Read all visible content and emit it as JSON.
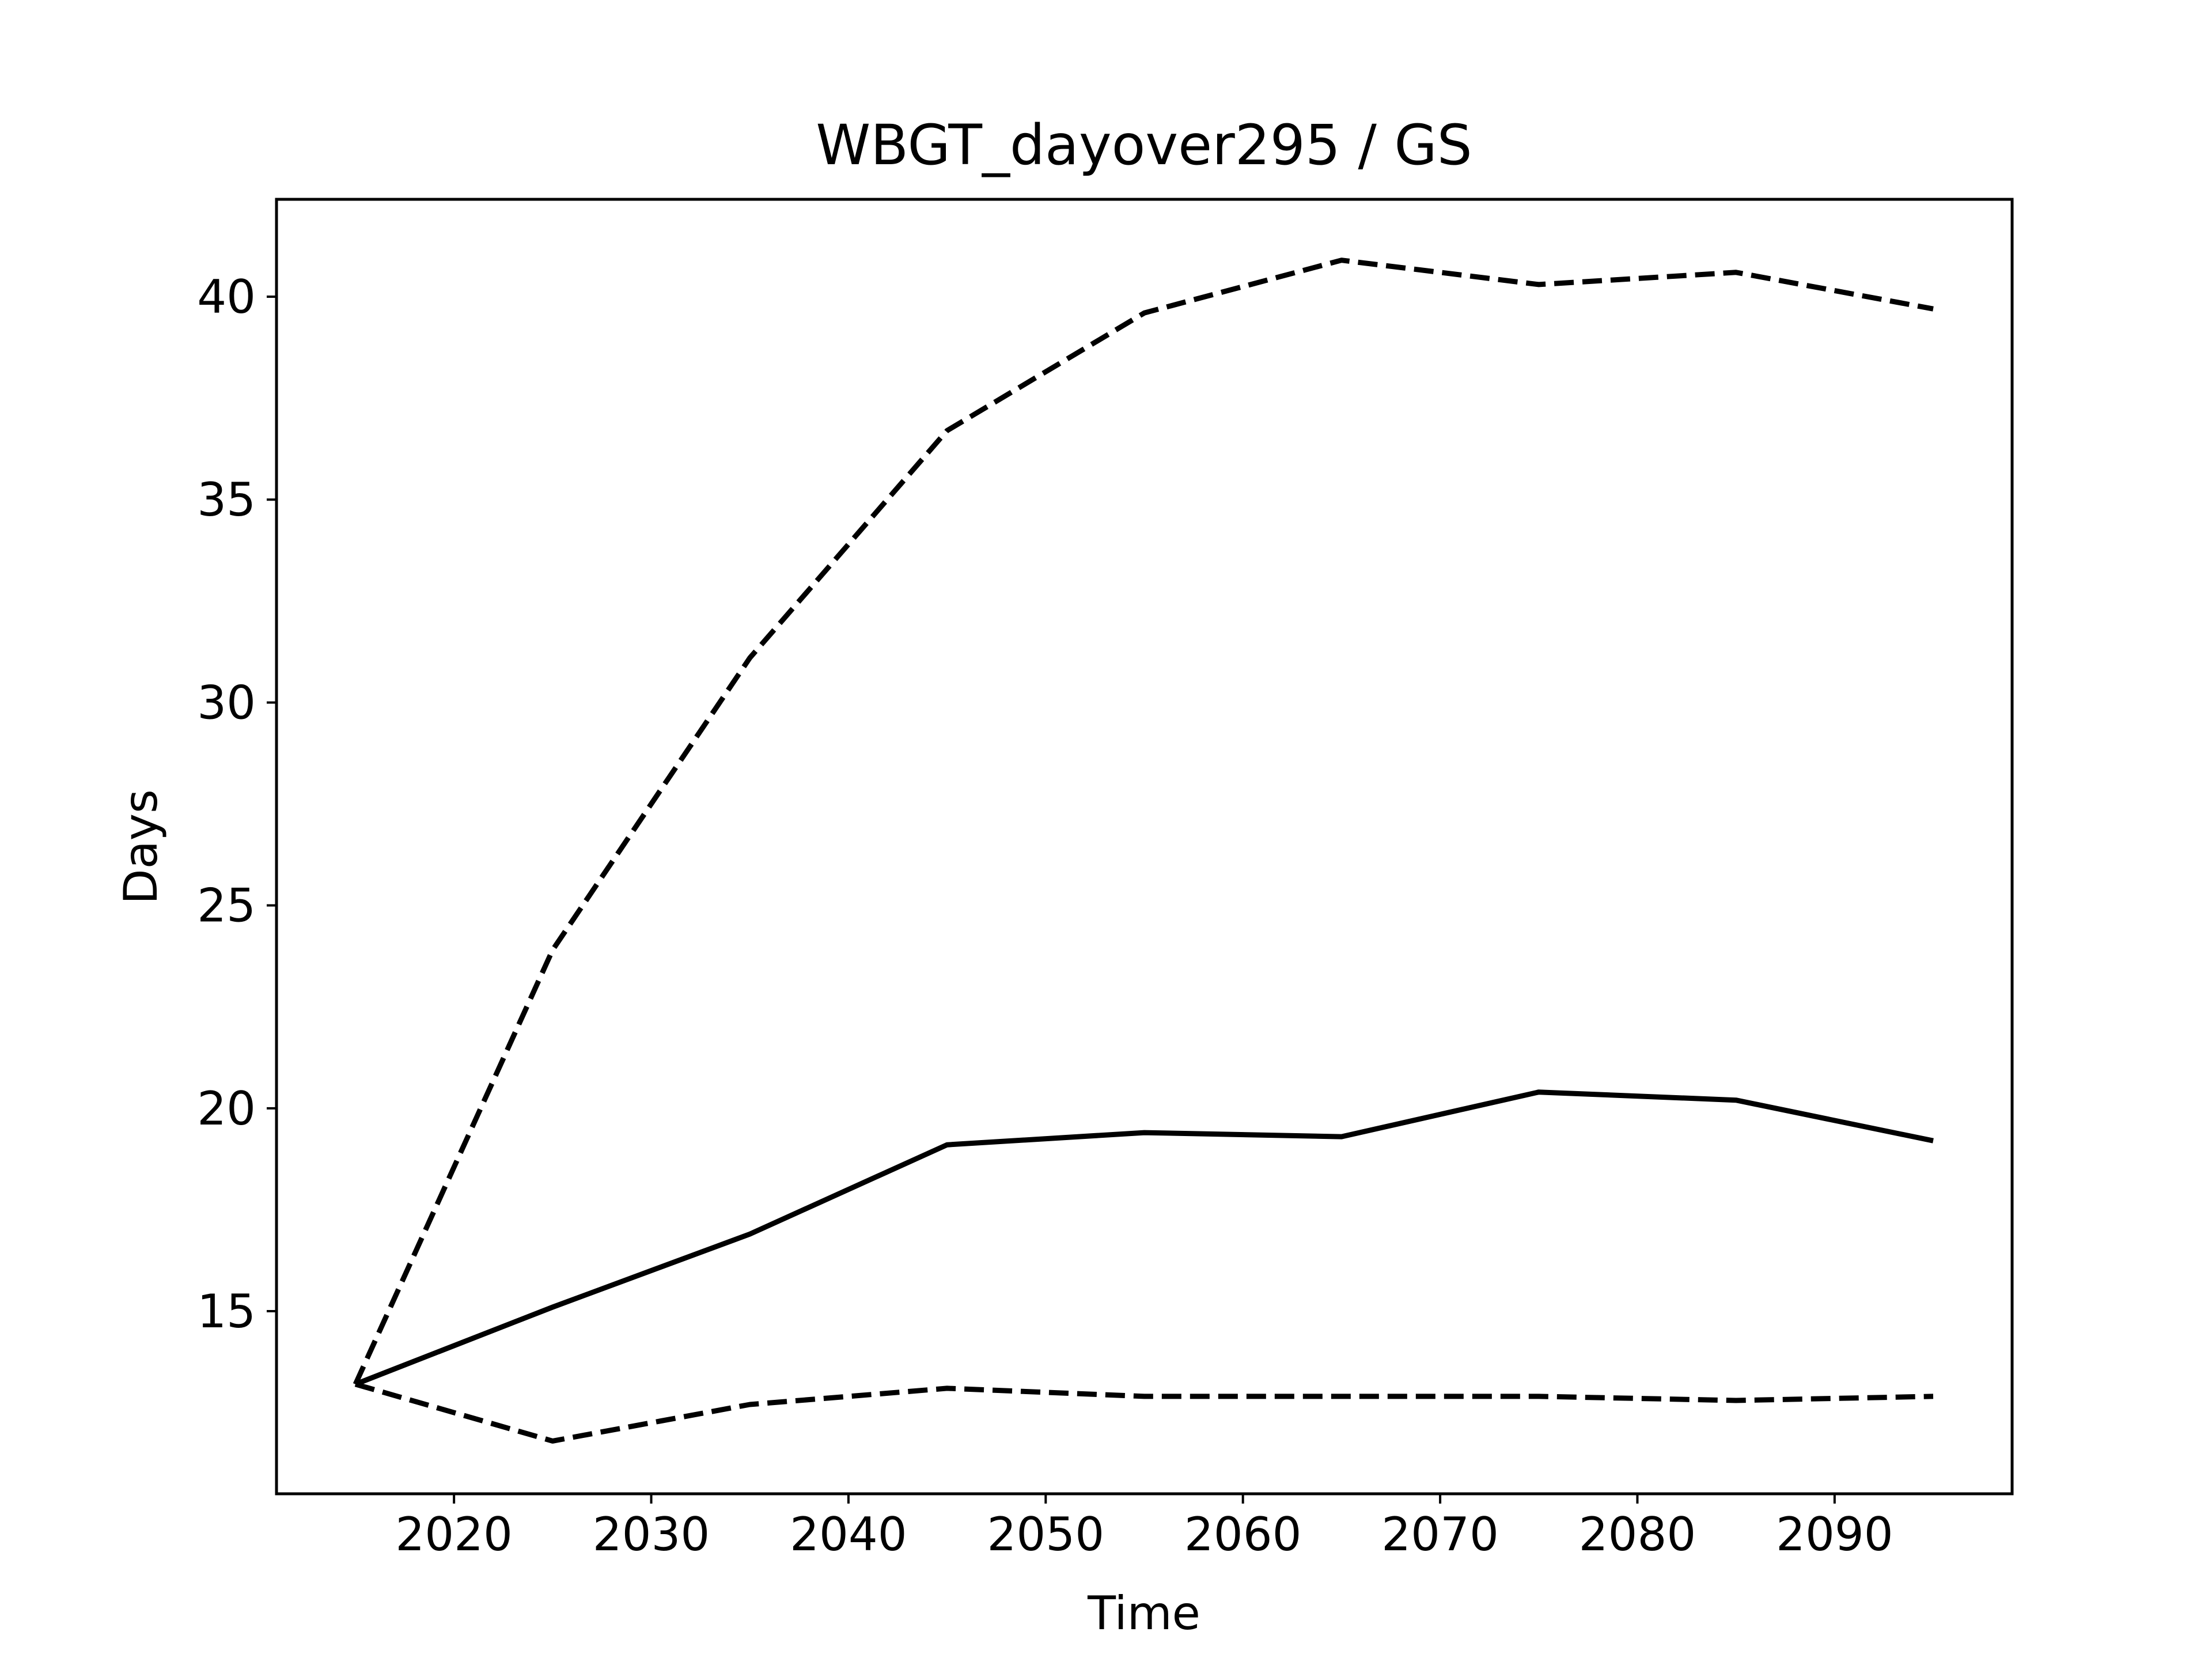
{
  "chart_data": {
    "type": "line",
    "title": "WBGT_dayover295 / GS",
    "xlabel": "Time",
    "ylabel": "Days",
    "x": [
      2015,
      2025,
      2035,
      2045,
      2055,
      2065,
      2075,
      2085,
      2095
    ],
    "xlim": [
      2011,
      2099
    ],
    "ylim": [
      10.5,
      42.4
    ],
    "xticks": [
      2020,
      2030,
      2040,
      2050,
      2060,
      2070,
      2080,
      2090
    ],
    "yticks": [
      15,
      20,
      25,
      30,
      35,
      40
    ],
    "grid": false,
    "legend": "none",
    "series": [
      {
        "style": "solid",
        "color": "#000000",
        "values": [
          13.2,
          15.1,
          16.9,
          19.1,
          19.4,
          19.3,
          20.4,
          20.2,
          19.2
        ]
      },
      {
        "style": "dashed",
        "color": "#000000",
        "values": [
          13.2,
          23.9,
          31.1,
          36.7,
          39.6,
          40.9,
          40.3,
          40.6,
          39.7
        ]
      },
      {
        "style": "dashed",
        "color": "#000000",
        "values": [
          13.2,
          11.8,
          12.7,
          13.1,
          12.9,
          12.9,
          12.9,
          12.8,
          12.9
        ]
      }
    ]
  }
}
